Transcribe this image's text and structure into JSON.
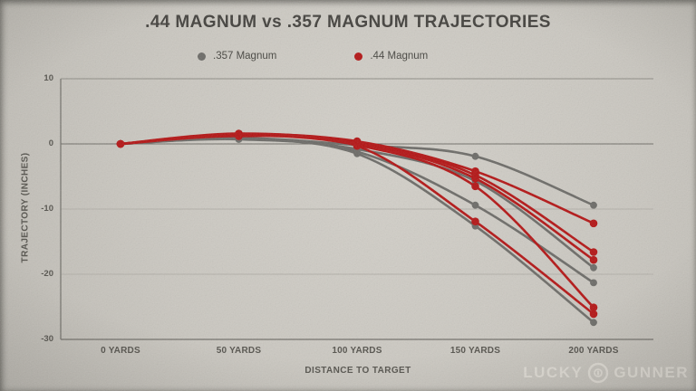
{
  "chart_data": {
    "type": "line",
    "title": ".44 MAGNUM vs .357 MAGNUM TRAJECTORIES",
    "xlabel": "DISTANCE TO TARGET",
    "ylabel": "TRAJECTORY (INCHES)",
    "x": [
      0,
      50,
      100,
      150,
      200
    ],
    "x_tick_labels": [
      "0 YARDS",
      "50 YARDS",
      "100 YARDS",
      "150 YARDS",
      "200 YARDS"
    ],
    "y_ticks": [
      10,
      0,
      -10,
      -20,
      -30
    ],
    "y_tick_labels": [
      "10",
      "0",
      "-10",
      "-20",
      "-30"
    ],
    "ylim": [
      -30,
      10
    ],
    "grid": "horizontal",
    "legend_position": "top",
    "series": [
      {
        "name": ".357 Magnum load 1",
        "group": ".357 Magnum",
        "color": "#6b6a66",
        "values": [
          0,
          0.9,
          -0.2,
          -1.9,
          -9.4
        ]
      },
      {
        "name": ".357 Magnum load 2",
        "group": ".357 Magnum",
        "color": "#6b6a66",
        "values": [
          0,
          0.8,
          -0.8,
          -5.7,
          -19.0
        ]
      },
      {
        "name": ".357 Magnum load 3",
        "group": ".357 Magnum",
        "color": "#6b6a66",
        "values": [
          0,
          0.8,
          -1.2,
          -9.4,
          -21.3
        ]
      },
      {
        "name": ".357 Magnum load 4",
        "group": ".357 Magnum",
        "color": "#6b6a66",
        "values": [
          0,
          0.7,
          -1.5,
          -12.6,
          -27.4
        ]
      },
      {
        "name": ".44 Magnum load 1",
        "group": ".44 Magnum",
        "color": "#b31212",
        "values": [
          0,
          1.5,
          0.4,
          -4.2,
          -12.2
        ]
      },
      {
        "name": ".44 Magnum load 2",
        "group": ".44 Magnum",
        "color": "#b31212",
        "values": [
          0,
          1.6,
          0.2,
          -4.8,
          -16.6
        ]
      },
      {
        "name": ".44 Magnum load 3",
        "group": ".44 Magnum",
        "color": "#b31212",
        "values": [
          0,
          1.5,
          0.1,
          -5.3,
          -17.8
        ]
      },
      {
        "name": ".44 Magnum load 4",
        "group": ".44 Magnum",
        "color": "#b31212",
        "values": [
          0,
          1.3,
          -0.2,
          -6.5,
          -25.1
        ]
      },
      {
        "name": ".44 Magnum load 5",
        "group": ".44 Magnum",
        "color": "#b31212",
        "values": [
          0,
          1.2,
          -0.3,
          -11.9,
          -26.1
        ]
      }
    ]
  },
  "legend": {
    "items": [
      {
        "label": ".357 Magnum",
        "color": "#6b6a66"
      },
      {
        "label": ".44 Magnum",
        "color": "#b31212"
      }
    ]
  },
  "watermark": {
    "word1": "LUCKY",
    "word2": "GUNNER"
  },
  "colors": {
    "background": "#cac7c0",
    "title_text": "#413f3b",
    "axis_text": "#53514b",
    "zero_line": "#6f6d67",
    "grid_faint": "#b2afa8",
    "series_357": "#6b6a66",
    "series_44": "#b31212"
  }
}
